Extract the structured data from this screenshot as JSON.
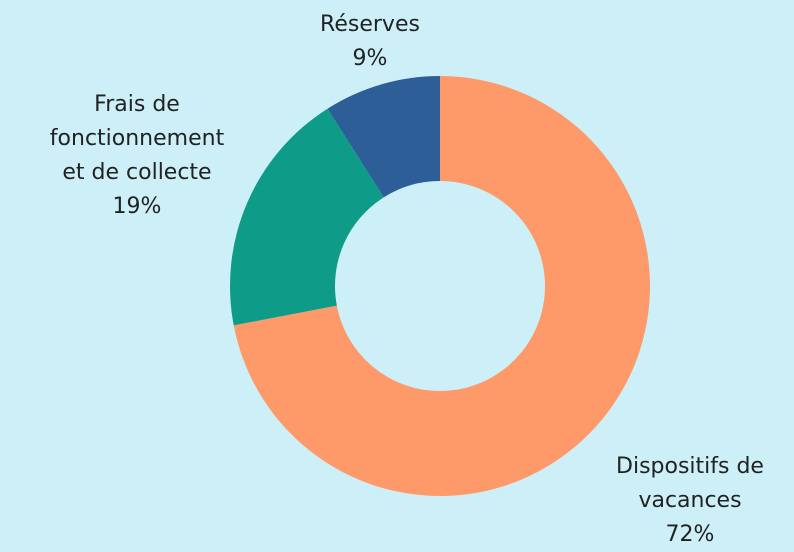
{
  "chart_data": {
    "type": "donut",
    "categories": [
      "Dispositifs de vacances",
      "Frais de fonctionnement et de collecte",
      "Réserves"
    ],
    "values": [
      72,
      19,
      9
    ],
    "value_labels": [
      "72%",
      "19%",
      "9%"
    ],
    "colors": [
      "#fe9a69",
      "#0e9c89",
      "#2e5e98"
    ]
  }
}
